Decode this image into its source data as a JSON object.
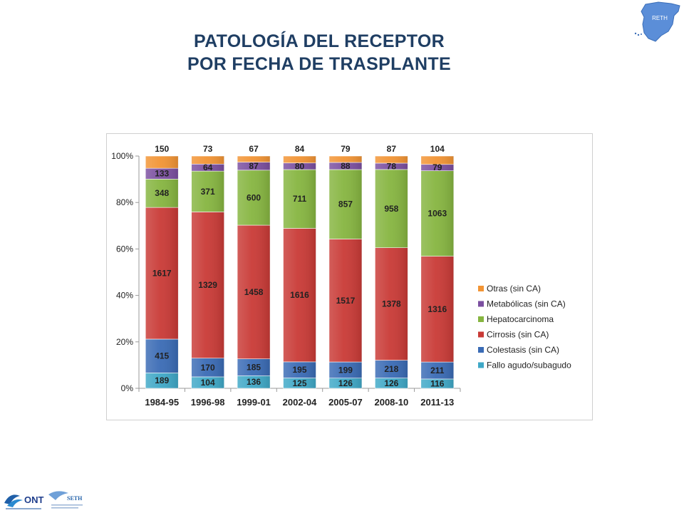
{
  "title": {
    "line1": "PATOLOGÍA DEL RECEPTOR",
    "line2": "POR FECHA DE TRASPLANTE"
  },
  "logos": {
    "reth": "RETH",
    "ont": "ONT",
    "seth": "SETH"
  },
  "chart_data": {
    "type": "bar",
    "stacked": "percent",
    "categories": [
      "1984-95",
      "1996-98",
      "1999-01",
      "2002-04",
      "2005-07",
      "2008-10",
      "2011-13"
    ],
    "yticks": [
      "0%",
      "20%",
      "40%",
      "60%",
      "80%",
      "100%"
    ],
    "ylim": [
      0,
      100
    ],
    "legend_position": "right",
    "series": [
      {
        "name": "Fallo agudo/subagudo",
        "color": "#3FA8C7",
        "values": [
          189,
          104,
          136,
          125,
          126,
          126,
          116
        ]
      },
      {
        "name": "Colestasis (sin CA)",
        "color": "#3A6BB5",
        "values": [
          415,
          170,
          185,
          195,
          199,
          218,
          211
        ]
      },
      {
        "name": "Cirrosis (sin CA)",
        "color": "#C93A36",
        "values": [
          1617,
          1329,
          1458,
          1616,
          1517,
          1378,
          1316
        ]
      },
      {
        "name": "Hepatocarcinoma",
        "color": "#86B540",
        "values": [
          348,
          371,
          600,
          711,
          857,
          958,
          1063
        ]
      },
      {
        "name": "Metabólicas (sin CA)",
        "color": "#7B4FA0",
        "values": [
          133,
          64,
          87,
          80,
          88,
          78,
          79
        ]
      },
      {
        "name": "Otras (sin CA)",
        "color": "#F29434",
        "values": [
          150,
          73,
          67,
          84,
          79,
          87,
          104
        ]
      }
    ]
  }
}
